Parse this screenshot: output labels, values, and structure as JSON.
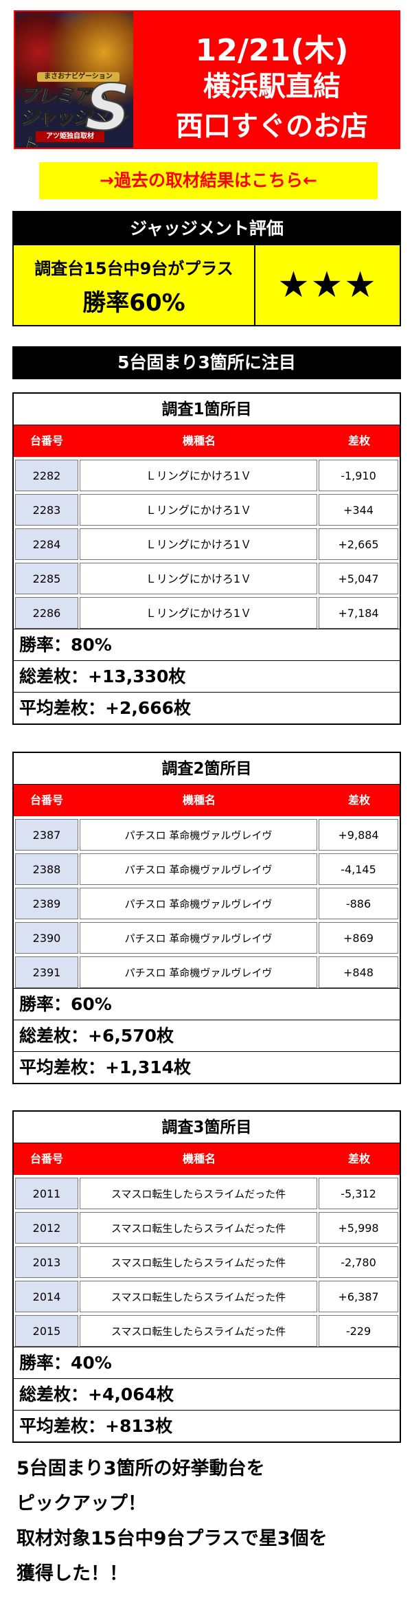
{
  "header": {
    "logo": {
      "subtitle": "まさおナビゲーション",
      "line1": "プレミアム",
      "line2": "ジャッジメント",
      "letter": "S",
      "tag": "アツ姫独自取材"
    },
    "date": "12/21(木)",
    "location_line1": "横浜駅直結",
    "location_line2": "西口すぐのお店",
    "colors": {
      "background": "#ff0000",
      "text": "#ffffff"
    }
  },
  "past_results_link": "→過去の取材結果はこちら←",
  "evaluation": {
    "title": "ジャッジメント評価",
    "condition": "調査台15台中9台がプラス",
    "win_rate": "勝率60%",
    "stars": "★★★",
    "colors": {
      "panel": "#ffff00"
    }
  },
  "section_heading": "5台固まり3箇所に注目",
  "columns": {
    "number": "台番号",
    "machine": "機種名",
    "diff": "差枚"
  },
  "surveys": [
    {
      "title": "調査1箇所目",
      "rows": [
        {
          "number": "2282",
          "machine": "Ｌリングにかけろ1Ｖ",
          "diff": "-1,910"
        },
        {
          "number": "2283",
          "machine": "Ｌリングにかけろ1Ｖ",
          "diff": "+344"
        },
        {
          "number": "2284",
          "machine": "Ｌリングにかけろ1Ｖ",
          "diff": "+2,665"
        },
        {
          "number": "2285",
          "machine": "Ｌリングにかけろ1Ｖ",
          "diff": "+5,047"
        },
        {
          "number": "2286",
          "machine": "Ｌリングにかけろ1Ｖ",
          "diff": "+7,184"
        }
      ],
      "win_rate": "勝率：80%",
      "total": "総差枚：+13,330枚",
      "average": "平均差枚：+2,666枚"
    },
    {
      "title": "調査2箇所目",
      "rows": [
        {
          "number": "2387",
          "machine": "パチスロ 革命機ヴァルヴレイヴ",
          "diff": "+9,884"
        },
        {
          "number": "2388",
          "machine": "パチスロ 革命機ヴァルヴレイヴ",
          "diff": "-4,145"
        },
        {
          "number": "2389",
          "machine": "パチスロ 革命機ヴァルヴレイヴ",
          "diff": "-886"
        },
        {
          "number": "2390",
          "machine": "パチスロ 革命機ヴァルヴレイヴ",
          "diff": "+869"
        },
        {
          "number": "2391",
          "machine": "パチスロ 革命機ヴァルヴレイヴ",
          "diff": "+848"
        }
      ],
      "win_rate": "勝率：60%",
      "total": "総差枚：+6,570枚",
      "average": "平均差枚：+1,314枚"
    },
    {
      "title": "調査3箇所目",
      "rows": [
        {
          "number": "2011",
          "machine": "スマスロ転生したらスライムだった件",
          "diff": "-5,312"
        },
        {
          "number": "2012",
          "machine": "スマスロ転生したらスライムだった件",
          "diff": "+5,998"
        },
        {
          "number": "2013",
          "machine": "スマスロ転生したらスライムだった件",
          "diff": "-2,780"
        },
        {
          "number": "2014",
          "machine": "スマスロ転生したらスライムだった件",
          "diff": "+6,387"
        },
        {
          "number": "2015",
          "machine": "スマスロ転生したらスライムだった件",
          "diff": "-229"
        }
      ],
      "win_rate": "勝率：40%",
      "total": "総差枚：+4,064枚",
      "average": "平均差枚：+813枚"
    }
  ],
  "closing": [
    "5台固まり3箇所の好挙動台を",
    "ピックアップ！",
    "取材対象15台中9台プラスで星3個を",
    "獲得した！！"
  ]
}
